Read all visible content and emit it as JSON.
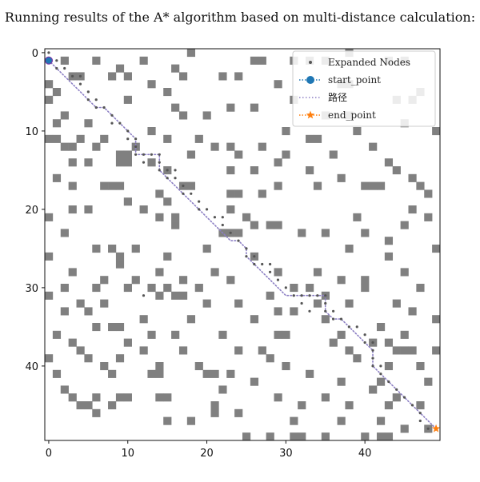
{
  "title": "Running results of the A* algorithm based on multi-distance calculation:",
  "chart_data": {
    "type": "scatter",
    "title": "Running results of the A* algorithm based on multi-distance calculation:",
    "xlabel": "",
    "ylabel": "",
    "xlim": [
      0,
      49
    ],
    "ylim": [
      49,
      0
    ],
    "x_ticks": [
      0,
      10,
      20,
      30,
      40
    ],
    "y_ticks": [
      0,
      10,
      20,
      30,
      40
    ],
    "grid": false,
    "legend_position": "top-right",
    "obstacle_color": "#808080",
    "obstacles": [
      [
        2,
        1
      ],
      [
        6,
        1
      ],
      [
        9,
        2
      ],
      [
        12,
        1
      ],
      [
        16,
        2
      ],
      [
        18,
        0
      ],
      [
        26,
        1
      ],
      [
        27,
        1
      ],
      [
        31,
        1
      ],
      [
        33,
        1
      ],
      [
        35,
        1
      ],
      [
        38,
        0
      ],
      [
        43,
        1
      ],
      [
        45,
        1
      ],
      [
        0,
        4
      ],
      [
        1,
        5
      ],
      [
        3,
        3
      ],
      [
        4,
        3
      ],
      [
        8,
        3
      ],
      [
        10,
        3
      ],
      [
        13,
        4
      ],
      [
        15,
        5
      ],
      [
        17,
        3
      ],
      [
        22,
        3
      ],
      [
        24,
        3
      ],
      [
        29,
        4
      ],
      [
        31,
        6
      ],
      [
        37,
        4
      ],
      [
        38,
        4
      ],
      [
        46,
        6
      ],
      [
        0,
        6
      ],
      [
        2,
        8
      ],
      [
        10,
        6
      ],
      [
        16,
        7
      ],
      [
        17,
        8
      ],
      [
        20,
        8
      ],
      [
        23,
        7
      ],
      [
        26,
        7
      ],
      [
        35,
        8
      ],
      [
        38,
        8
      ],
      [
        44,
        6
      ],
      [
        47,
        5
      ],
      [
        1,
        9
      ],
      [
        5,
        9
      ],
      [
        7,
        11
      ],
      [
        13,
        10
      ],
      [
        15,
        11
      ],
      [
        19,
        11
      ],
      [
        21,
        12
      ],
      [
        24,
        13
      ],
      [
        27,
        12
      ],
      [
        30,
        10
      ],
      [
        33,
        11
      ],
      [
        34,
        11
      ],
      [
        39,
        10
      ],
      [
        45,
        9
      ],
      [
        49,
        10
      ],
      [
        0,
        11
      ],
      [
        1,
        11
      ],
      [
        2,
        12
      ],
      [
        3,
        12
      ],
      [
        4,
        11
      ],
      [
        6,
        12
      ],
      [
        9,
        13
      ],
      [
        10,
        13
      ],
      [
        11,
        12
      ],
      [
        18,
        13
      ],
      [
        23,
        12
      ],
      [
        30,
        13
      ],
      [
        36,
        13
      ],
      [
        41,
        12
      ],
      [
        43,
        14
      ],
      [
        3,
        14
      ],
      [
        5,
        14
      ],
      [
        9,
        14
      ],
      [
        10,
        14
      ],
      [
        13,
        14
      ],
      [
        15,
        15
      ],
      [
        23,
        15
      ],
      [
        26,
        15
      ],
      [
        29,
        14
      ],
      [
        33,
        15
      ],
      [
        37,
        16
      ],
      [
        44,
        15
      ],
      [
        46,
        16
      ],
      [
        1,
        16
      ],
      [
        3,
        17
      ],
      [
        7,
        17
      ],
      [
        8,
        17
      ],
      [
        9,
        17
      ],
      [
        14,
        18
      ],
      [
        17,
        17
      ],
      [
        18,
        17
      ],
      [
        23,
        18
      ],
      [
        24,
        18
      ],
      [
        27,
        18
      ],
      [
        29,
        17
      ],
      [
        34,
        17
      ],
      [
        40,
        17
      ],
      [
        41,
        17
      ],
      [
        42,
        17
      ],
      [
        47,
        17
      ],
      [
        48,
        18
      ],
      [
        3,
        20
      ],
      [
        5,
        20
      ],
      [
        10,
        19
      ],
      [
        12,
        20
      ],
      [
        15,
        19
      ],
      [
        23,
        20
      ],
      [
        25,
        21
      ],
      [
        26,
        22
      ],
      [
        28,
        22
      ],
      [
        29,
        22
      ],
      [
        39,
        21
      ],
      [
        46,
        20
      ],
      [
        48,
        21
      ],
      [
        0,
        21
      ],
      [
        2,
        23
      ],
      [
        14,
        21
      ],
      [
        16,
        21
      ],
      [
        16,
        22
      ],
      [
        22,
        23
      ],
      [
        23,
        23
      ],
      [
        24,
        23
      ],
      [
        32,
        23
      ],
      [
        35,
        23
      ],
      [
        40,
        23
      ],
      [
        43,
        24
      ],
      [
        45,
        22
      ],
      [
        0,
        26
      ],
      [
        6,
        25
      ],
      [
        8,
        25
      ],
      [
        11,
        25
      ],
      [
        9,
        26
      ],
      [
        9,
        27
      ],
      [
        15,
        26
      ],
      [
        20,
        25
      ],
      [
        26,
        26
      ],
      [
        38,
        25
      ],
      [
        43,
        26
      ],
      [
        49,
        25
      ],
      [
        3,
        28
      ],
      [
        7,
        29
      ],
      [
        11,
        29
      ],
      [
        14,
        28
      ],
      [
        17,
        29
      ],
      [
        21,
        28
      ],
      [
        23,
        29
      ],
      [
        29,
        28
      ],
      [
        34,
        28
      ],
      [
        37,
        29
      ],
      [
        40,
        29
      ],
      [
        45,
        28
      ],
      [
        2,
        30
      ],
      [
        6,
        30
      ],
      [
        10,
        30
      ],
      [
        13,
        30
      ],
      [
        15,
        30
      ],
      [
        16,
        31
      ],
      [
        17,
        31
      ],
      [
        19,
        30
      ],
      [
        31,
        30
      ],
      [
        33,
        30
      ],
      [
        35,
        31
      ],
      [
        40,
        30
      ],
      [
        47,
        30
      ],
      [
        0,
        31
      ],
      [
        4,
        32
      ],
      [
        7,
        32
      ],
      [
        14,
        31
      ],
      [
        20,
        32
      ],
      [
        24,
        32
      ],
      [
        28,
        31
      ],
      [
        34,
        32
      ],
      [
        38,
        32
      ],
      [
        44,
        32
      ],
      [
        46,
        33
      ],
      [
        2,
        33
      ],
      [
        5,
        33
      ],
      [
        8,
        35
      ],
      [
        9,
        35
      ],
      [
        12,
        34
      ],
      [
        18,
        34
      ],
      [
        26,
        34
      ],
      [
        29,
        33
      ],
      [
        31,
        33
      ],
      [
        35,
        34
      ],
      [
        42,
        35
      ],
      [
        49,
        34
      ],
      [
        1,
        36
      ],
      [
        6,
        35
      ],
      [
        13,
        36
      ],
      [
        16,
        36
      ],
      [
        22,
        36
      ],
      [
        29,
        36
      ],
      [
        30,
        36
      ],
      [
        37,
        36
      ],
      [
        41,
        37
      ],
      [
        43,
        37
      ],
      [
        45,
        36
      ],
      [
        3,
        37
      ],
      [
        4,
        38
      ],
      [
        10,
        37
      ],
      [
        12,
        38
      ],
      [
        17,
        38
      ],
      [
        24,
        38
      ],
      [
        27,
        38
      ],
      [
        36,
        37
      ],
      [
        38,
        38
      ],
      [
        44,
        38
      ],
      [
        45,
        38
      ],
      [
        46,
        38
      ],
      [
        49,
        38
      ],
      [
        0,
        39
      ],
      [
        5,
        39
      ],
      [
        7,
        40
      ],
      [
        9,
        39
      ],
      [
        14,
        40
      ],
      [
        19,
        40
      ],
      [
        28,
        39
      ],
      [
        30,
        40
      ],
      [
        39,
        39
      ],
      [
        43,
        40
      ],
      [
        47,
        40
      ],
      [
        1,
        41
      ],
      [
        8,
        41
      ],
      [
        13,
        41
      ],
      [
        14,
        41
      ],
      [
        20,
        41
      ],
      [
        21,
        41
      ],
      [
        23,
        41
      ],
      [
        26,
        42
      ],
      [
        33,
        41
      ],
      [
        37,
        42
      ],
      [
        42,
        42
      ],
      [
        48,
        42
      ],
      [
        2,
        43
      ],
      [
        6,
        44
      ],
      [
        9,
        44
      ],
      [
        10,
        44
      ],
      [
        14,
        44
      ],
      [
        15,
        44
      ],
      [
        22,
        43
      ],
      [
        29,
        44
      ],
      [
        35,
        44
      ],
      [
        41,
        43
      ],
      [
        44,
        44
      ],
      [
        3,
        44
      ],
      [
        4,
        45
      ],
      [
        5,
        45
      ],
      [
        8,
        45
      ],
      [
        21,
        45
      ],
      [
        32,
        45
      ],
      [
        38,
        45
      ],
      [
        43,
        45
      ],
      [
        47,
        45
      ],
      [
        6,
        46
      ],
      [
        15,
        47
      ],
      [
        18,
        47
      ],
      [
        21,
        46
      ],
      [
        24,
        46
      ],
      [
        31,
        47
      ],
      [
        37,
        47
      ],
      [
        42,
        47
      ],
      [
        45,
        48
      ],
      [
        48,
        48
      ],
      [
        25,
        49
      ],
      [
        28,
        49
      ],
      [
        31,
        49
      ],
      [
        32,
        49
      ],
      [
        35,
        49
      ],
      [
        40,
        49
      ],
      [
        42,
        49
      ],
      [
        43,
        49
      ]
    ],
    "series": [
      {
        "name": "Expanded Nodes",
        "color": "#555555",
        "points": [
          [
            0,
            0
          ],
          [
            1,
            1
          ],
          [
            1,
            2
          ],
          [
            2,
            2
          ],
          [
            3,
            3
          ],
          [
            4,
            4
          ],
          [
            5,
            5
          ],
          [
            5,
            6
          ],
          [
            6,
            6
          ],
          [
            6,
            7
          ],
          [
            7,
            7
          ],
          [
            8,
            8
          ],
          [
            8,
            9
          ],
          [
            9,
            9
          ],
          [
            10,
            10
          ],
          [
            11,
            11
          ],
          [
            11,
            12
          ],
          [
            11,
            13
          ],
          [
            12,
            13
          ],
          [
            12,
            14
          ],
          [
            13,
            13
          ],
          [
            14,
            13
          ],
          [
            14,
            14
          ],
          [
            14,
            15
          ],
          [
            15,
            15
          ],
          [
            15,
            16
          ],
          [
            16,
            16
          ],
          [
            17,
            17
          ],
          [
            17,
            18
          ],
          [
            18,
            18
          ],
          [
            19,
            19
          ],
          [
            19,
            20
          ],
          [
            20,
            20
          ],
          [
            21,
            21
          ],
          [
            22,
            22
          ],
          [
            23,
            23
          ],
          [
            24,
            24
          ],
          [
            25,
            25
          ],
          [
            25,
            26
          ],
          [
            26,
            26
          ],
          [
            26,
            27
          ],
          [
            27,
            27
          ],
          [
            28,
            28
          ],
          [
            29,
            29
          ],
          [
            30,
            30
          ],
          [
            31,
            31
          ],
          [
            32,
            31
          ],
          [
            33,
            31
          ],
          [
            34,
            31
          ],
          [
            35,
            31
          ],
          [
            35,
            32
          ],
          [
            35,
            33
          ],
          [
            36,
            33
          ],
          [
            36,
            34
          ],
          [
            37,
            34
          ],
          [
            38,
            35
          ],
          [
            39,
            35
          ],
          [
            40,
            36
          ],
          [
            40,
            37
          ],
          [
            41,
            37
          ],
          [
            41,
            38
          ],
          [
            41,
            39
          ],
          [
            41,
            40
          ],
          [
            42,
            40
          ],
          [
            42,
            41
          ],
          [
            43,
            42
          ],
          [
            44,
            43
          ],
          [
            45,
            44
          ],
          [
            46,
            45
          ],
          [
            47,
            46
          ],
          [
            47,
            47
          ],
          [
            48,
            48
          ],
          [
            12,
            31
          ],
          [
            32,
            32
          ],
          [
            33,
            33
          ],
          [
            28,
            27
          ],
          [
            22,
            21
          ],
          [
            16,
            15
          ],
          [
            10,
            11
          ],
          [
            4,
            3
          ]
        ]
      },
      {
        "name": "start_point",
        "color": "#1f77b4",
        "points": [
          [
            0,
            1
          ]
        ]
      },
      {
        "name": "路径",
        "color": "#8c7fc4",
        "points": [
          [
            0,
            1
          ],
          [
            1,
            2
          ],
          [
            2,
            3
          ],
          [
            3,
            4
          ],
          [
            4,
            5
          ],
          [
            5,
            6
          ],
          [
            6,
            7
          ],
          [
            7,
            7
          ],
          [
            8,
            8
          ],
          [
            9,
            9
          ],
          [
            10,
            10
          ],
          [
            11,
            11
          ],
          [
            11,
            12
          ],
          [
            11,
            13
          ],
          [
            12,
            13
          ],
          [
            13,
            13
          ],
          [
            14,
            13
          ],
          [
            14,
            14
          ],
          [
            14,
            15
          ],
          [
            15,
            16
          ],
          [
            16,
            17
          ],
          [
            17,
            18
          ],
          [
            18,
            19
          ],
          [
            19,
            20
          ],
          [
            20,
            21
          ],
          [
            21,
            22
          ],
          [
            22,
            23
          ],
          [
            23,
            24
          ],
          [
            24,
            24
          ],
          [
            25,
            25
          ],
          [
            25,
            26
          ],
          [
            26,
            27
          ],
          [
            27,
            28
          ],
          [
            28,
            29
          ],
          [
            29,
            30
          ],
          [
            30,
            31
          ],
          [
            31,
            31
          ],
          [
            32,
            31
          ],
          [
            33,
            31
          ],
          [
            34,
            31
          ],
          [
            35,
            31
          ],
          [
            35,
            32
          ],
          [
            35,
            33
          ],
          [
            36,
            34
          ],
          [
            37,
            34
          ],
          [
            38,
            35
          ],
          [
            39,
            36
          ],
          [
            40,
            37
          ],
          [
            41,
            38
          ],
          [
            41,
            39
          ],
          [
            41,
            40
          ],
          [
            42,
            41
          ],
          [
            43,
            42
          ],
          [
            44,
            43
          ],
          [
            45,
            44
          ],
          [
            46,
            45
          ],
          [
            47,
            46
          ],
          [
            48,
            47
          ],
          [
            49,
            48
          ]
        ]
      },
      {
        "name": "end_point",
        "color": "#ff7f0e",
        "points": [
          [
            49,
            48
          ]
        ]
      }
    ]
  }
}
